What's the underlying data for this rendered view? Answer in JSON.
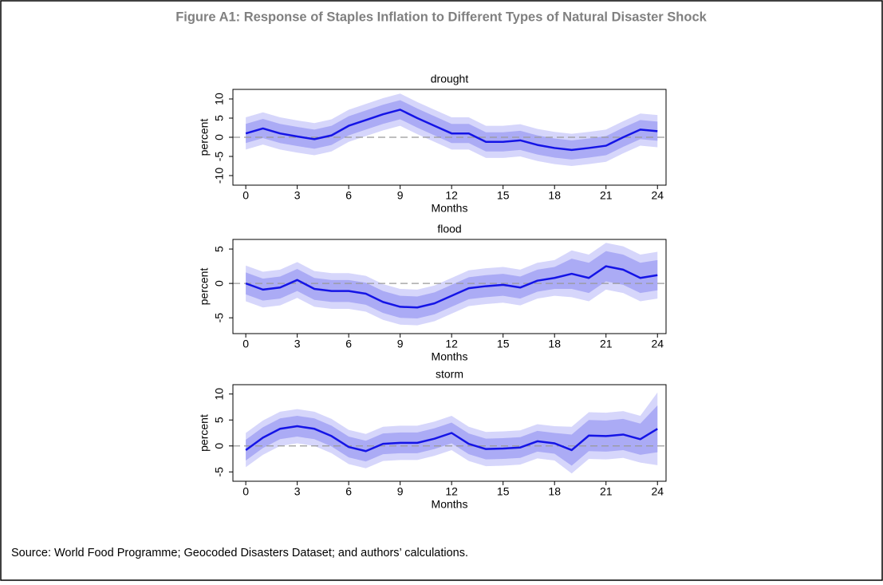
{
  "title": "Figure A1: Response of Staples Inflation to Different Types of Natural Disaster Shock",
  "source": "Source: World Food Programme; Geocoded Disasters Dataset; and authors’ calculations.",
  "chart_data": [
    {
      "type": "line",
      "title": "drought",
      "xlabel": "Months",
      "ylabel": "percent",
      "x": [
        0,
        1,
        2,
        3,
        4,
        5,
        6,
        7,
        8,
        9,
        10,
        11,
        12,
        13,
        14,
        15,
        16,
        17,
        18,
        19,
        20,
        21,
        22,
        23,
        24
      ],
      "xlim": [
        -0.75,
        24.5
      ],
      "xticks": [
        0,
        3,
        6,
        9,
        12,
        15,
        18,
        21,
        24
      ],
      "ylim": [
        -12.5,
        12.5
      ],
      "yticks": [
        -10,
        -5,
        0,
        5,
        10
      ],
      "reference_line": 0,
      "series": [
        {
          "color": "#1414e6",
          "values": [
            1,
            2.3,
            1,
            0.2,
            -0.5,
            0.5,
            3,
            4.5,
            6,
            7.2,
            5,
            3,
            1,
            1,
            -1.2,
            -1.2,
            -0.8,
            -2,
            -2.8,
            -3.3,
            -2.8,
            -2.2,
            0,
            2,
            1.6
          ]
        }
      ],
      "bands": [
        {
          "color": "#d6d6fb",
          "lower": [
            -3.2,
            -1.9,
            -3.2,
            -4,
            -4.7,
            -3.7,
            -1.2,
            0.3,
            1.8,
            3,
            0.8,
            -1.2,
            -3.2,
            -3.2,
            -5.4,
            -5.4,
            -5,
            -6.2,
            -7,
            -7.5,
            -7,
            -6.4,
            -4.2,
            -2.2,
            -2.6
          ],
          "upper": [
            5.2,
            6.5,
            5.2,
            4.4,
            3.7,
            4.7,
            7.2,
            8.7,
            10.2,
            11.4,
            9.2,
            7.2,
            5.2,
            5.2,
            3,
            3,
            3.4,
            2.2,
            1.4,
            0.9,
            1.4,
            2,
            4.2,
            6.2,
            5.8
          ]
        },
        {
          "color": "#ababf5",
          "lower": [
            -1.5,
            -0.2,
            -1.5,
            -2.3,
            -3,
            -2,
            0.5,
            2,
            3.5,
            4.7,
            2.5,
            0.5,
            -1.5,
            -1.5,
            -3.7,
            -3.7,
            -3.3,
            -4.5,
            -5.3,
            -5.8,
            -5.3,
            -4.7,
            -2.5,
            -0.5,
            -0.9
          ],
          "upper": [
            3.5,
            4.8,
            3.5,
            2.7,
            2,
            3,
            5.5,
            7,
            8.5,
            9.7,
            7.5,
            5.5,
            3.5,
            3.5,
            1.3,
            1.3,
            1.7,
            0.5,
            -0.3,
            -0.8,
            -0.3,
            0.3,
            2.5,
            4.5,
            4.1
          ]
        }
      ]
    },
    {
      "type": "line",
      "title": "flood",
      "xlabel": "Months",
      "ylabel": "percent",
      "x": [
        0,
        1,
        2,
        3,
        4,
        5,
        6,
        7,
        8,
        9,
        10,
        11,
        12,
        13,
        14,
        15,
        16,
        17,
        18,
        19,
        20,
        21,
        22,
        23,
        24
      ],
      "xlim": [
        -0.75,
        24.5
      ],
      "xticks": [
        0,
        3,
        6,
        9,
        12,
        15,
        18,
        21,
        24
      ],
      "ylim": [
        -7.3,
        6.4
      ],
      "yticks": [
        -5,
        0,
        5
      ],
      "reference_line": 0,
      "series": [
        {
          "color": "#1414e6",
          "values": [
            0,
            -0.9,
            -0.6,
            0.5,
            -0.8,
            -1.1,
            -1.1,
            -1.5,
            -2.7,
            -3.4,
            -3.5,
            -2.9,
            -1.8,
            -0.7,
            -0.4,
            -0.2,
            -0.6,
            0.4,
            0.8,
            1.4,
            0.8,
            2.5,
            2,
            0.8,
            1.2
          ]
        }
      ],
      "bands": [
        {
          "color": "#d6d6fb",
          "lower": [
            -2.6,
            -3.5,
            -3.2,
            -2.1,
            -3.4,
            -3.7,
            -3.7,
            -4.1,
            -5.3,
            -6,
            -6.1,
            -5.5,
            -4.4,
            -3.3,
            -3,
            -2.8,
            -3.2,
            -2.2,
            -1.8,
            -2,
            -2.6,
            -0.9,
            -1.4,
            -2.6,
            -2.2
          ],
          "upper": [
            2.6,
            1.7,
            2,
            3.1,
            1.8,
            1.5,
            1.5,
            1.1,
            -0.1,
            -0.8,
            -0.9,
            -0.3,
            0.8,
            1.9,
            2.2,
            2.4,
            2,
            3,
            3.4,
            4.8,
            4.2,
            5.9,
            5.4,
            4.2,
            4.6
          ]
        },
        {
          "color": "#ababf5",
          "lower": [
            -1.6,
            -2.5,
            -2.2,
            -1.1,
            -2.4,
            -2.7,
            -2.7,
            -3.1,
            -4.3,
            -5,
            -5.1,
            -4.5,
            -3.4,
            -2.3,
            -2,
            -1.8,
            -2.2,
            -1.2,
            -0.8,
            -0.8,
            -1.4,
            0.3,
            -0.2,
            -1.4,
            -1
          ],
          "upper": [
            1.6,
            0.7,
            1,
            2.1,
            0.8,
            0.5,
            0.5,
            0.1,
            -1.1,
            -1.8,
            -1.9,
            -1.3,
            -0.2,
            0.9,
            1.2,
            1.4,
            1,
            2,
            2.4,
            3.6,
            3,
            4.7,
            4.2,
            3,
            3.4
          ]
        }
      ]
    },
    {
      "type": "line",
      "title": "storm",
      "xlabel": "Months",
      "ylabel": "percent",
      "x": [
        0,
        1,
        2,
        3,
        4,
        5,
        6,
        7,
        8,
        9,
        10,
        11,
        12,
        13,
        14,
        15,
        16,
        17,
        18,
        19,
        20,
        21,
        22,
        23,
        24
      ],
      "xlim": [
        -0.75,
        24.5
      ],
      "xticks": [
        0,
        3,
        6,
        9,
        12,
        15,
        18,
        21,
        24
      ],
      "ylim": [
        -6.8,
        11.8
      ],
      "yticks": [
        -5,
        0,
        5,
        10
      ],
      "reference_line": 0,
      "series": [
        {
          "color": "#1414e6",
          "values": [
            -0.8,
            1.6,
            3.3,
            3.8,
            3.3,
            1.9,
            -0.2,
            -1,
            0.4,
            0.6,
            0.6,
            1.4,
            2.5,
            0.4,
            -0.6,
            -0.5,
            -0.3,
            0.9,
            0.5,
            -0.8,
            2,
            1.9,
            2.2,
            1.3,
            3.3
          ]
        }
      ],
      "bands": [
        {
          "color": "#d6d6fb",
          "lower": [
            -4.1,
            -1.7,
            0,
            0.5,
            0,
            -1.4,
            -3.5,
            -4.3,
            -2.9,
            -2.7,
            -2.7,
            -1.9,
            -0.8,
            -2.9,
            -3.9,
            -3.8,
            -3.6,
            -2.4,
            -2.8,
            -5.3,
            -2.5,
            -2.6,
            -2.3,
            -3.2,
            -3.7
          ],
          "upper": [
            2.5,
            4.9,
            6.6,
            7.1,
            6.6,
            5.2,
            3.1,
            2.3,
            3.7,
            3.9,
            3.9,
            4.7,
            5.8,
            3.7,
            2.7,
            2.8,
            3,
            4.2,
            3.8,
            3.7,
            6.5,
            6.4,
            6.7,
            5.8,
            10.3
          ]
        },
        {
          "color": "#ababf5",
          "lower": [
            -2.8,
            -0.4,
            1.3,
            1.8,
            1.3,
            -0.1,
            -2.2,
            -3,
            -1.6,
            -1.4,
            -1.4,
            -0.6,
            0.5,
            -1.6,
            -2.6,
            -2.5,
            -2.3,
            -1.1,
            -1.5,
            -3.8,
            -1,
            -1.1,
            -0.8,
            -1.7,
            -1.2
          ],
          "upper": [
            1.2,
            3.6,
            5.3,
            5.8,
            5.3,
            3.9,
            1.8,
            1,
            2.4,
            2.6,
            2.6,
            3.4,
            4.5,
            2.4,
            1.4,
            1.5,
            1.7,
            2.9,
            2.5,
            2.2,
            5,
            4.9,
            5.2,
            4.3,
            7.8
          ]
        }
      ]
    }
  ]
}
